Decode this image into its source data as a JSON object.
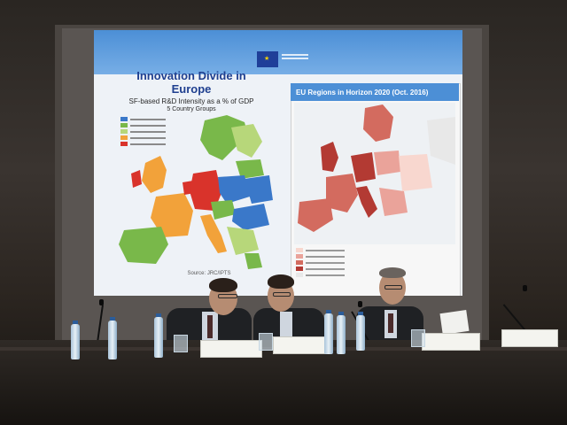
{
  "slide": {
    "title": "Innovation Divide in Europe",
    "subtitle": "SF-based R&D Intensity as a % of GDP",
    "groups_label": "5 Country Groups",
    "source": "Source: JRC/IPTS",
    "right_title": "EU Regions in Horizon 2020 (Oct. 2016)"
  },
  "legend_left_colors": [
    "#3a78c9",
    "#79b84a",
    "#b7d77a",
    "#f2a23a",
    "#d9332b"
  ],
  "legend_right_colors": [
    "#f8d7cf",
    "#eaa39a",
    "#d36b5f",
    "#b33a33",
    "#e8e8e8"
  ],
  "nameplates": [],
  "colors": {
    "slide_blue": "#4c8fd6",
    "title_blue": "#1f3f8f",
    "map_red": "#c9463d",
    "map_blue": "#3a78c9",
    "map_green": "#79b84a"
  }
}
